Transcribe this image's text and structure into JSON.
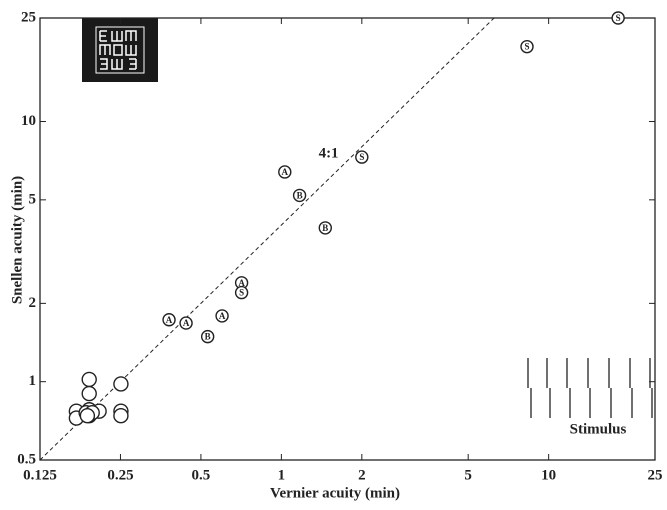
{
  "chart_data": {
    "type": "scatter",
    "x_label": "Vernier acuity (min)",
    "y_label": "Snellen acuity (min)",
    "xscale": "log",
    "yscale": "log",
    "xlim": [
      0.125,
      25
    ],
    "ylim": [
      0.5,
      25
    ],
    "xticks": [
      0.125,
      0.25,
      0.5,
      1,
      2,
      5,
      10,
      25
    ],
    "yticks": [
      0.5,
      1,
      2,
      5,
      10,
      25
    ],
    "reference_line": {
      "label": "4:1",
      "ratio": 4
    },
    "stimulus_label": "Stimulus",
    "color": "#222222",
    "series": [
      {
        "x": [
          0.191,
          0.191,
          0.191,
          0.191,
          0.251,
          0.251,
          0.251,
          0.208,
          0.171,
          0.171,
          0.186,
          0.196,
          0.188
        ],
        "y": [
          1.02,
          0.9,
          0.78,
          0.74,
          0.98,
          0.77,
          0.74,
          0.77,
          0.77,
          0.725,
          0.76,
          0.76,
          0.74
        ]
      },
      {
        "marker": "A",
        "x": [
          1.03,
          0.38,
          0.44,
          0.6,
          0.71
        ],
        "y": [
          6.4,
          1.73,
          1.68,
          1.79,
          2.4
        ]
      },
      {
        "marker": "B",
        "x": [
          1.17,
          1.46,
          0.53
        ],
        "y": [
          5.2,
          3.9,
          1.49
        ]
      },
      {
        "marker": "S",
        "x": [
          2.0,
          0.71,
          8.3,
          18.2
        ],
        "y": [
          7.3,
          2.2,
          19.4,
          25
        ]
      }
    ]
  }
}
